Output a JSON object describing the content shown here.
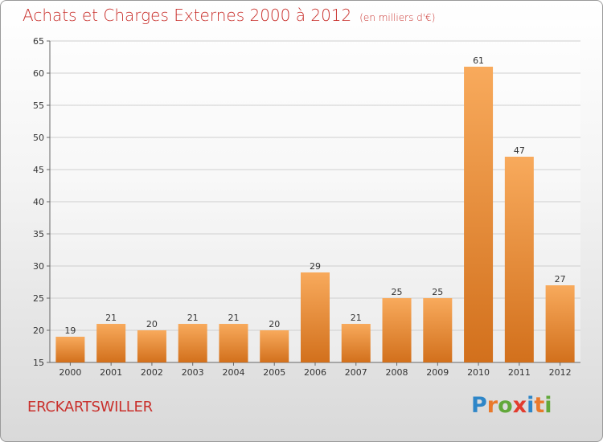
{
  "header": {
    "title": "Achats et Charges Externes 2000 à 2012",
    "unit": "(en milliers d'€)"
  },
  "footer": {
    "commune": "ERCKARTSWILLER",
    "logo": [
      "P",
      "r",
      "o",
      "x",
      "i",
      "t",
      "i"
    ]
  },
  "colors": {
    "bar_light": "#f7a75a",
    "bar_dark": "#d5741e",
    "title": "#c9302c",
    "grid": "#cfcfcf"
  },
  "chart_data": {
    "type": "bar",
    "title": "Achats et Charges Externes 2000 à 2012",
    "ylabel": "(en milliers d'€)",
    "xlabel": "",
    "categories": [
      "2000",
      "2001",
      "2002",
      "2003",
      "2004",
      "2005",
      "2006",
      "2007",
      "2008",
      "2009",
      "2010",
      "2011",
      "2012"
    ],
    "values": [
      19,
      21,
      20,
      21,
      21,
      20,
      29,
      21,
      25,
      25,
      61,
      47,
      27
    ],
    "ylim": [
      15,
      65
    ],
    "yticks": [
      15,
      20,
      25,
      30,
      35,
      40,
      45,
      50,
      55,
      60,
      65
    ],
    "grid": true,
    "legend": "none"
  }
}
